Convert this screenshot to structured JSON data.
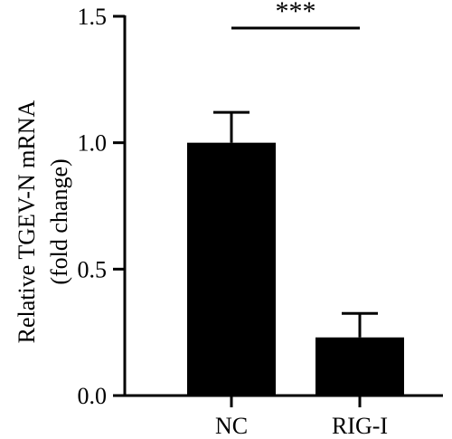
{
  "chart_data": {
    "type": "bar",
    "categories": [
      "NC",
      "RIG-I"
    ],
    "values": [
      1.0,
      0.23
    ],
    "errors": [
      0.12,
      0.095
    ],
    "ylabel_lines": [
      "Relative TGEV-N mRNA",
      "(fold change)"
    ],
    "ylim": [
      0,
      1.5
    ],
    "yticks": [
      "0.0",
      "0.5",
      "1.0",
      "1.5"
    ],
    "ytick_values": [
      0,
      0.5,
      1.0,
      1.5
    ],
    "significance": {
      "label": "***",
      "between": [
        "NC",
        "RIG-I"
      ]
    },
    "bar_color": "#000000",
    "grid": false,
    "legend": "none"
  }
}
